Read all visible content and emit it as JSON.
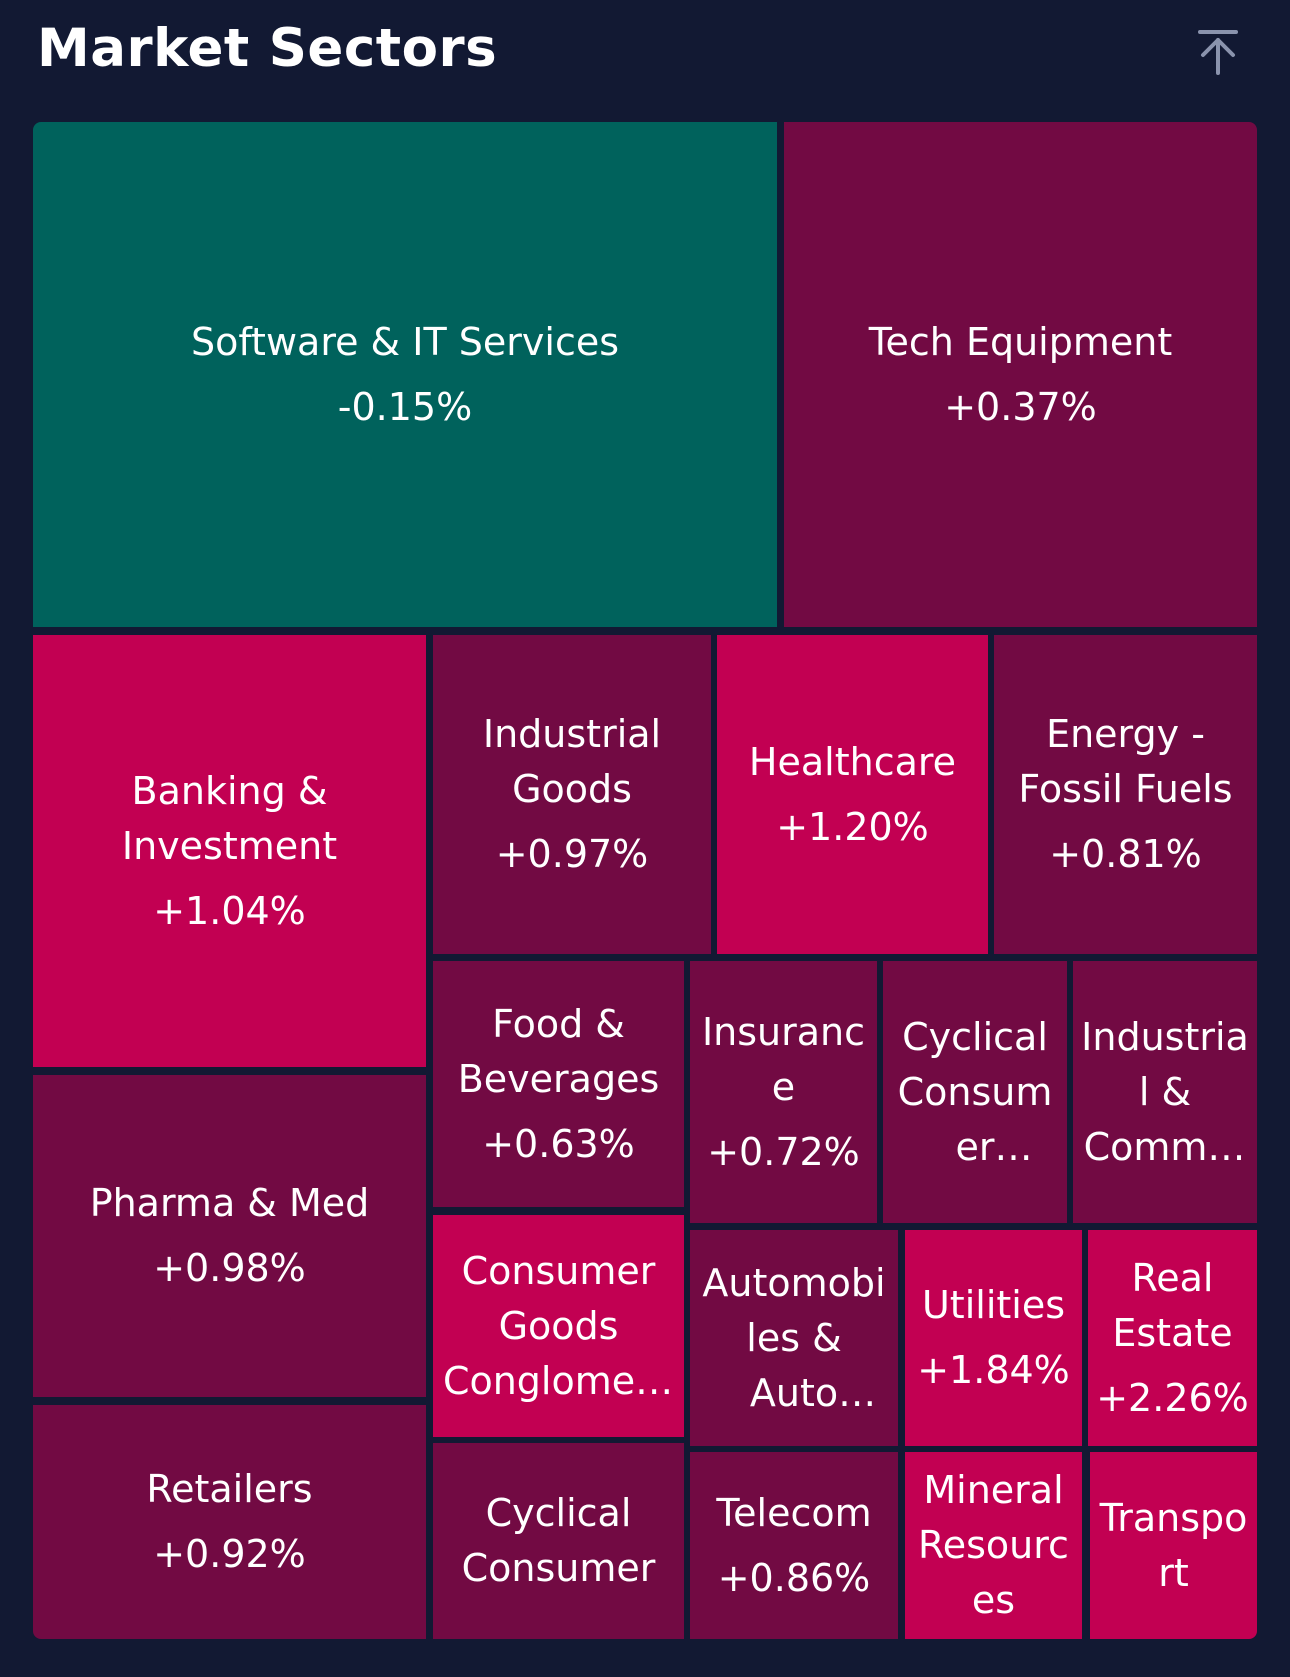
{
  "header": {
    "title": "Market Sectors",
    "collapse_icon": "arrow-up-to-top-icon"
  },
  "colors": {
    "background": "#121933",
    "negative": "#00625C",
    "positive_low": "#720A43",
    "positive_high": "#C20052"
  },
  "chart_data": {
    "type": "treemap",
    "title": "Market Sectors",
    "items": [
      {
        "name": "Software & IT Services",
        "change": "-0.15%",
        "value": -0.15,
        "color": "#00625C"
      },
      {
        "name": "Tech Equipment",
        "change": "+0.37%",
        "value": 0.37,
        "color": "#720A43"
      },
      {
        "name": "Banking & Investment",
        "change": "+1.04%",
        "value": 1.04,
        "color": "#C20052"
      },
      {
        "name": "Industrial Goods",
        "change": "+0.97%",
        "value": 0.97,
        "color": "#720A43"
      },
      {
        "name": "Healthcare",
        "change": "+1.20%",
        "value": 1.2,
        "color": "#C20052"
      },
      {
        "name": "Energy - Fossil Fuels",
        "change": "+0.81%",
        "value": 0.81,
        "color": "#720A43"
      },
      {
        "name": "Pharma & Med",
        "change": "+0.98%",
        "value": 0.98,
        "color": "#720A43"
      },
      {
        "name": "Food & Beverages",
        "change": "+0.63%",
        "value": 0.63,
        "color": "#720A43"
      },
      {
        "name": "Insurance",
        "change": "+0.72%",
        "value": 0.72,
        "color": "#720A43"
      },
      {
        "name": "Cyclical Consumer Products",
        "change": "",
        "value": null,
        "color": "#720A43"
      },
      {
        "name": "Industrial & Commercial Services",
        "change": "",
        "value": null,
        "color": "#720A43"
      },
      {
        "name": "Consumer Goods Conglomerates",
        "change": "",
        "value": null,
        "color": "#C20052"
      },
      {
        "name": "Automobiles & Auto Parts",
        "change": "",
        "value": null,
        "color": "#720A43"
      },
      {
        "name": "Utilities",
        "change": "+1.84%",
        "value": 1.84,
        "color": "#C20052"
      },
      {
        "name": "Real Estate",
        "change": "+2.26%",
        "value": 2.26,
        "color": "#C20052"
      },
      {
        "name": "Retailers",
        "change": "+0.92%",
        "value": 0.92,
        "color": "#720A43"
      },
      {
        "name": "Cyclical Consumer",
        "change": "",
        "value": null,
        "color": "#720A43"
      },
      {
        "name": "Telecom",
        "change": "+0.86%",
        "value": 0.86,
        "color": "#720A43"
      },
      {
        "name": "Mineral Resources",
        "change": "",
        "value": null,
        "color": "#C20052"
      },
      {
        "name": "Transport",
        "change": "",
        "value": null,
        "color": "#C20052"
      }
    ]
  }
}
